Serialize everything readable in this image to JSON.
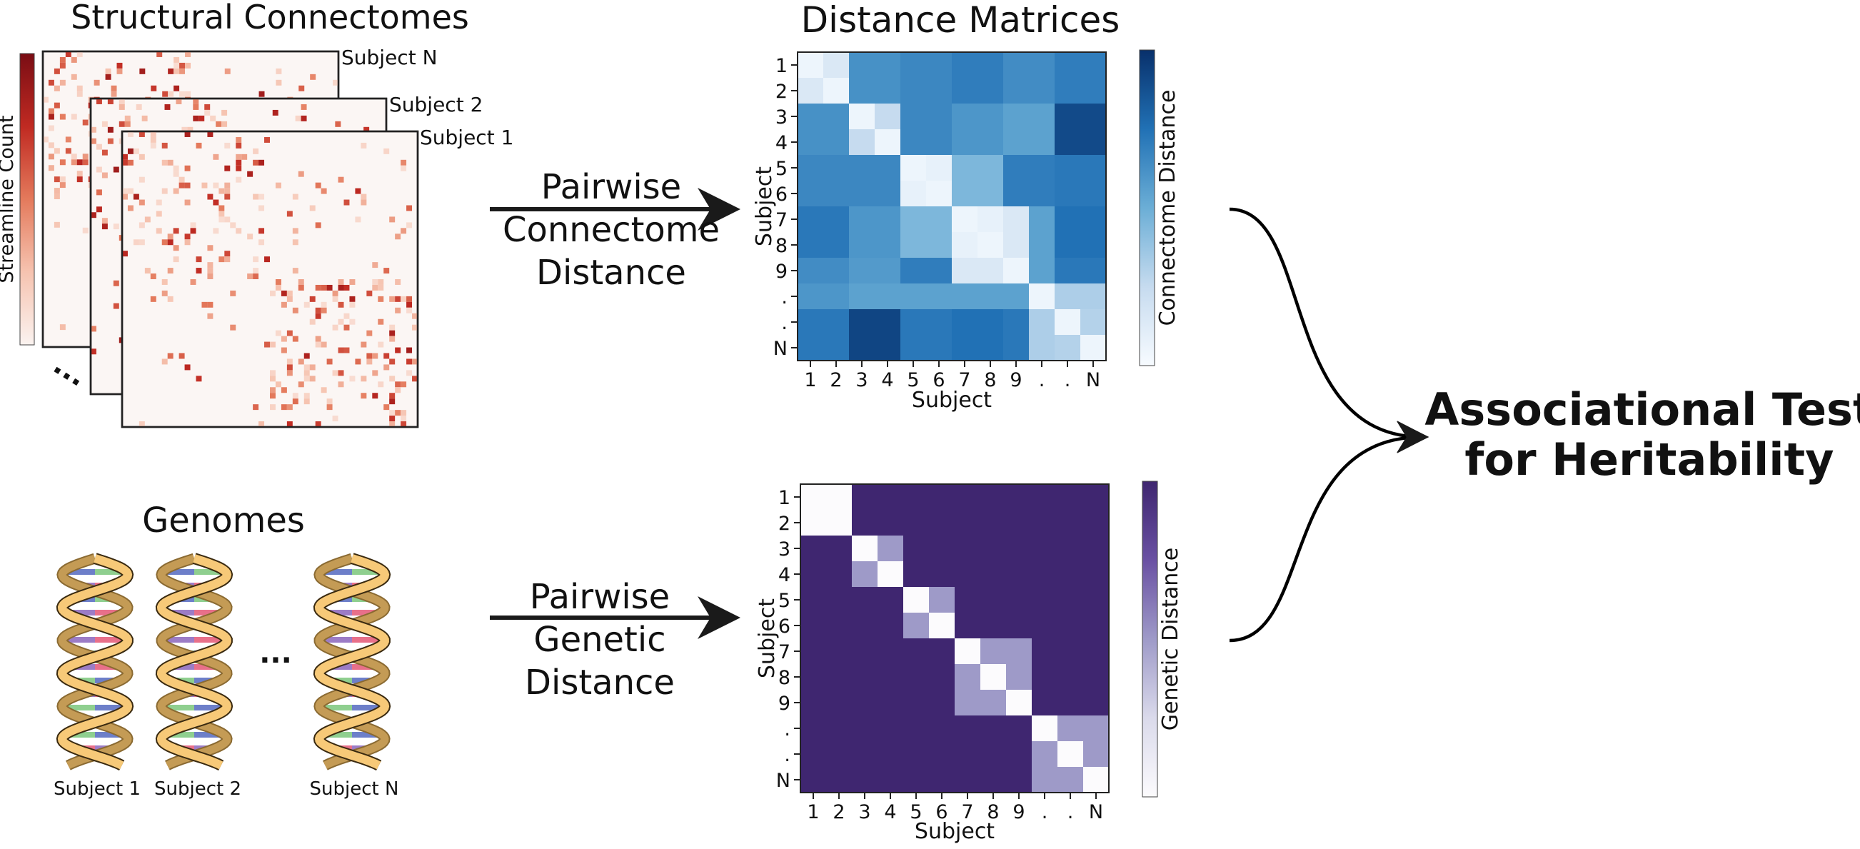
{
  "connectomes": {
    "title": "Structural Connectomes",
    "colorbar_label": "Streamline Count",
    "subjects": [
      "Subject N",
      "Subject 2",
      "Subject 1"
    ],
    "stack_ellipsis": "...",
    "colormap": [
      "#fbf3f0",
      "#f6c3b0",
      "#e47a5c",
      "#c02a22",
      "#7a0d14"
    ]
  },
  "distance_matrices": {
    "title": "Distance Matrices"
  },
  "arrows": {
    "connectome": {
      "line1": "Pairwise",
      "line2": "Connectome",
      "line3": "Distance"
    },
    "genetic": {
      "line1": "Pairwise",
      "line2": "Genetic",
      "line3": "Distance"
    }
  },
  "genomes": {
    "title": "Genomes",
    "subjects": [
      "Subject 1",
      "Subject 2",
      "Subject N"
    ],
    "ellipsis": "...",
    "helix_color": "#f7c978",
    "rung_colors": [
      "#9c7cc6",
      "#8fcf8f",
      "#e8708a",
      "#6d7fc9"
    ]
  },
  "connectome_matrix": {
    "tick_labels": [
      "1",
      "2",
      "3",
      "4",
      "5",
      "6",
      "7",
      "8",
      "9",
      ".",
      ".",
      "N"
    ],
    "xlabel": "Subject",
    "ylabel": "Subject",
    "colorbar_label": "Connectome Distance",
    "colormap": [
      "#f7fbff",
      "#c6dbef",
      "#6baed6",
      "#2171b5",
      "#08306b"
    ],
    "values": [
      [
        0.05,
        0.15,
        0.62,
        0.62,
        0.66,
        0.66,
        0.7,
        0.7,
        0.64,
        0.64,
        0.7,
        0.7
      ],
      [
        0.15,
        0.05,
        0.62,
        0.62,
        0.66,
        0.66,
        0.7,
        0.7,
        0.64,
        0.64,
        0.7,
        0.7
      ],
      [
        0.62,
        0.62,
        0.05,
        0.25,
        0.66,
        0.66,
        0.6,
        0.6,
        0.55,
        0.55,
        0.9,
        0.9
      ],
      [
        0.62,
        0.62,
        0.25,
        0.05,
        0.66,
        0.66,
        0.6,
        0.6,
        0.55,
        0.55,
        0.9,
        0.9
      ],
      [
        0.66,
        0.66,
        0.66,
        0.66,
        0.05,
        0.08,
        0.45,
        0.45,
        0.7,
        0.7,
        0.72,
        0.72
      ],
      [
        0.66,
        0.66,
        0.66,
        0.66,
        0.08,
        0.05,
        0.45,
        0.45,
        0.7,
        0.7,
        0.72,
        0.72
      ],
      [
        0.72,
        0.72,
        0.6,
        0.6,
        0.45,
        0.45,
        0.05,
        0.08,
        0.15,
        0.55,
        0.75,
        0.75
      ],
      [
        0.72,
        0.72,
        0.6,
        0.6,
        0.45,
        0.45,
        0.08,
        0.05,
        0.15,
        0.55,
        0.75,
        0.75
      ],
      [
        0.64,
        0.64,
        0.58,
        0.58,
        0.7,
        0.7,
        0.15,
        0.15,
        0.05,
        0.55,
        0.72,
        0.72
      ],
      [
        0.6,
        0.6,
        0.55,
        0.55,
        0.55,
        0.55,
        0.55,
        0.55,
        0.55,
        0.05,
        0.32,
        0.32
      ],
      [
        0.72,
        0.72,
        0.92,
        0.92,
        0.72,
        0.72,
        0.75,
        0.75,
        0.72,
        0.32,
        0.05,
        0.3
      ],
      [
        0.72,
        0.72,
        0.92,
        0.92,
        0.72,
        0.72,
        0.75,
        0.75,
        0.72,
        0.32,
        0.3,
        0.05
      ]
    ]
  },
  "genetic_matrix": {
    "tick_labels": [
      "1",
      "2",
      "3",
      "4",
      "5",
      "6",
      "7",
      "8",
      "9",
      ".",
      ".",
      "N"
    ],
    "xlabel": "Subject",
    "ylabel": "Subject",
    "colorbar_label": "Genetic Distance",
    "colormap": [
      "#fcfbfd",
      "#dadaeb",
      "#9e9ac8",
      "#6a51a3",
      "#3f2670"
    ],
    "blocks": [
      [
        0,
        1,
        0.0
      ],
      [
        2,
        3,
        0.5
      ],
      [
        4,
        5,
        0.5
      ],
      [
        6,
        8,
        0.5
      ],
      [
        9,
        11,
        0.5
      ]
    ],
    "off_block_value": 1.0
  },
  "result": {
    "line1": "Associational Test",
    "line2": "for Heritability"
  }
}
